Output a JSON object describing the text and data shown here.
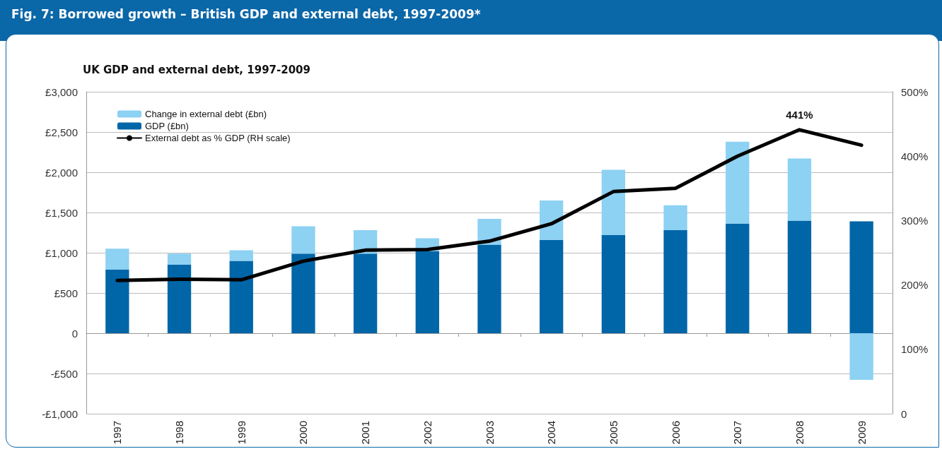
{
  "chart_data": {
    "type": "bar",
    "title": "Fig. 7: Borrowed growth – British GDP and external debt, 1997-2009*",
    "subtitle": "UK GDP and external debt, 1997-2009",
    "categories": [
      "1997",
      "1998",
      "1999",
      "2000",
      "2001",
      "2002",
      "2003",
      "2004",
      "2005",
      "2006",
      "2007",
      "2008",
      "2009"
    ],
    "stacked": true,
    "series": [
      {
        "name": "GDP (£bn)",
        "color": "#0066a8",
        "values": [
          790,
          850,
          900,
          990,
          990,
          1020,
          1100,
          1160,
          1220,
          1280,
          1360,
          1400,
          1390
        ]
      },
      {
        "name": "Change in external debt (£bn)",
        "color": "#8dd1f3",
        "values": [
          260,
          140,
          130,
          340,
          290,
          160,
          320,
          490,
          810,
          310,
          1020,
          770,
          -580
        ]
      },
      {
        "name": "External debt as % GDP (RH scale)",
        "type": "line",
        "axis": "y2",
        "color": "#000000",
        "values": [
          207,
          209,
          208,
          237,
          254,
          255,
          268,
          295,
          345,
          350,
          400,
          441,
          417
        ],
        "value_labels": [
          null,
          null,
          null,
          null,
          null,
          null,
          null,
          null,
          null,
          null,
          null,
          "441%",
          null
        ]
      }
    ],
    "ylim": [
      -1000,
      3000
    ],
    "yticks": [
      {
        "value": -1000,
        "label": "-£1,000"
      },
      {
        "value": -500,
        "label": "-£500"
      },
      0,
      {
        "value": 500,
        "label": "£500"
      },
      {
        "value": 1000,
        "label": "£1,000"
      },
      {
        "value": 1500,
        "label": "£1,500"
      },
      {
        "value": 2000,
        "label": "£2,000"
      },
      {
        "value": 2500,
        "label": "£2,500"
      },
      {
        "value": 3000,
        "label": "£3,000"
      }
    ],
    "y2lim": [
      0,
      500
    ],
    "y2ticks": [
      0,
      {
        "value": 100,
        "label": "100%"
      },
      {
        "value": 200,
        "label": "200%"
      },
      {
        "value": 300,
        "label": "300%"
      },
      {
        "value": 400,
        "label": "400%"
      },
      {
        "value": 500,
        "label": "500%"
      }
    ],
    "grid": "y",
    "legend": "top left",
    "marker": "none",
    "line_style": "solid"
  }
}
